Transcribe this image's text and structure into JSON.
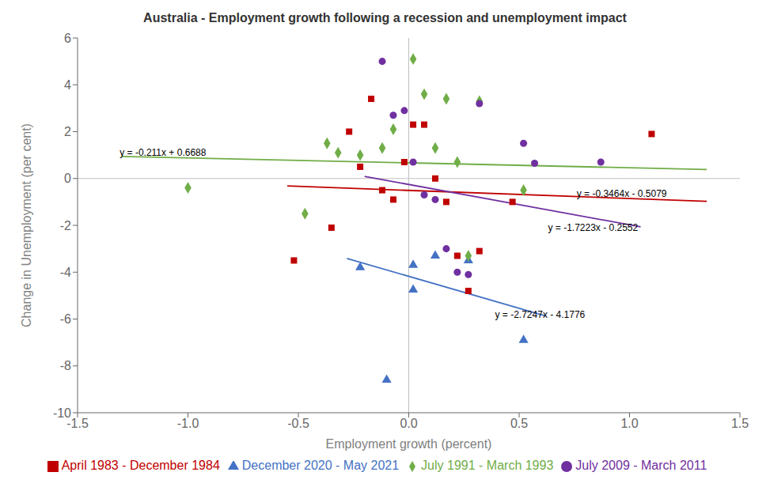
{
  "chart_data": {
    "type": "scatter",
    "title": "Australia - Employment growth following a recession and unemployment impact",
    "x_label": "Employment growth (percent)",
    "y_label": "Change in Unemployment (per cent)",
    "xlim": [
      -1.5,
      1.5
    ],
    "ylim": [
      -10,
      6
    ],
    "xticks": [
      -1.5,
      {
        "value": -1.0,
        "label": "-1.0"
      },
      -0.5,
      {
        "value": 0.0,
        "label": "0.0"
      },
      0.5,
      {
        "value": 1.0,
        "label": "1.0"
      },
      1.5
    ],
    "yticks": [
      -10,
      -8,
      -6,
      -4,
      -2,
      0,
      2,
      4,
      6
    ],
    "grid": false,
    "legend": "bottom",
    "series": [
      {
        "name": "December 2020 - May 2021",
        "type": "scatter",
        "color": "#4472c4",
        "marker": "triangle",
        "x": [
          -0.22,
          -0.1,
          0.02,
          0.02,
          0.12,
          0.27,
          0.52
        ],
        "y": [
          -3.8,
          -8.6,
          -3.7,
          -4.75,
          -3.3,
          -3.5,
          -6.9
        ]
      },
      {
        "name": "April 1983 - December 1984",
        "type": "scatter",
        "color": "#c00000",
        "marker": "square",
        "x": [
          -0.52,
          -0.35,
          -0.27,
          -0.22,
          -0.17,
          -0.12,
          -0.07,
          -0.02,
          0.02,
          0.07,
          0.12,
          0.17,
          0.22,
          0.27,
          0.32,
          0.47,
          1.1
        ],
        "y": [
          -3.5,
          -2.1,
          2.0,
          0.5,
          3.4,
          -0.5,
          -0.9,
          0.7,
          2.3,
          2.3,
          0.0,
          -1.0,
          -3.3,
          -4.8,
          -3.1,
          -1.0,
          1.9
        ]
      },
      {
        "name": "July 1991 - March 1993",
        "type": "scatter",
        "color": "#70ad47",
        "marker": "diamond",
        "x": [
          -1.0,
          -0.47,
          -0.37,
          -0.32,
          -0.22,
          -0.12,
          -0.07,
          0.02,
          0.07,
          0.12,
          0.17,
          0.22,
          0.27,
          0.32,
          0.52
        ],
        "y": [
          -0.4,
          -1.5,
          1.5,
          1.1,
          1.0,
          1.3,
          2.1,
          5.1,
          3.6,
          1.3,
          3.4,
          0.7,
          -3.3,
          3.3,
          -0.5
        ]
      },
      {
        "name": "July 2009 - March 2011",
        "type": "scatter",
        "color": "#7030a0",
        "marker": "circle",
        "x": [
          -0.12,
          -0.07,
          -0.02,
          0.02,
          0.07,
          0.12,
          0.17,
          0.22,
          0.27,
          0.32,
          0.52,
          0.57,
          0.87
        ],
        "y": [
          5.0,
          2.7,
          2.9,
          0.7,
          -0.7,
          -0.9,
          -3.0,
          -4.0,
          -4.1,
          3.2,
          1.5,
          0.65,
          0.7
        ]
      },
      {
        "type": "line",
        "color": "#4472c4",
        "x": [
          -0.28,
          0.62
        ],
        "y": [
          -3.414684,
          -5.866914
        ]
      },
      {
        "type": "line",
        "color": "#c00000",
        "x": [
          -0.55,
          1.35
        ],
        "y": [
          -0.31738,
          -0.97554
        ]
      },
      {
        "type": "line",
        "color": "#70ad47",
        "x": [
          -1.3,
          1.35
        ],
        "y": [
          0.9431,
          0.38395
        ]
      },
      {
        "type": "line",
        "color": "#7030a0",
        "x": [
          -0.2,
          1.05
        ],
        "y": [
          0.08926,
          -2.063615
        ]
      }
    ],
    "annotations": [
      {
        "x": -1.32,
        "y": 1.1,
        "text": "y = -0.211x + 0.6688"
      },
      {
        "x": 0.75,
        "y": -0.65,
        "text": "y = -0.3464x - 0.5079"
      },
      {
        "x": 0.62,
        "y": -2.1,
        "text": "y = -1.7223x - 0.2552"
      },
      {
        "x": 0.38,
        "y": -5.8,
        "text": "y = -2.7247x - 4.1776"
      }
    ]
  }
}
